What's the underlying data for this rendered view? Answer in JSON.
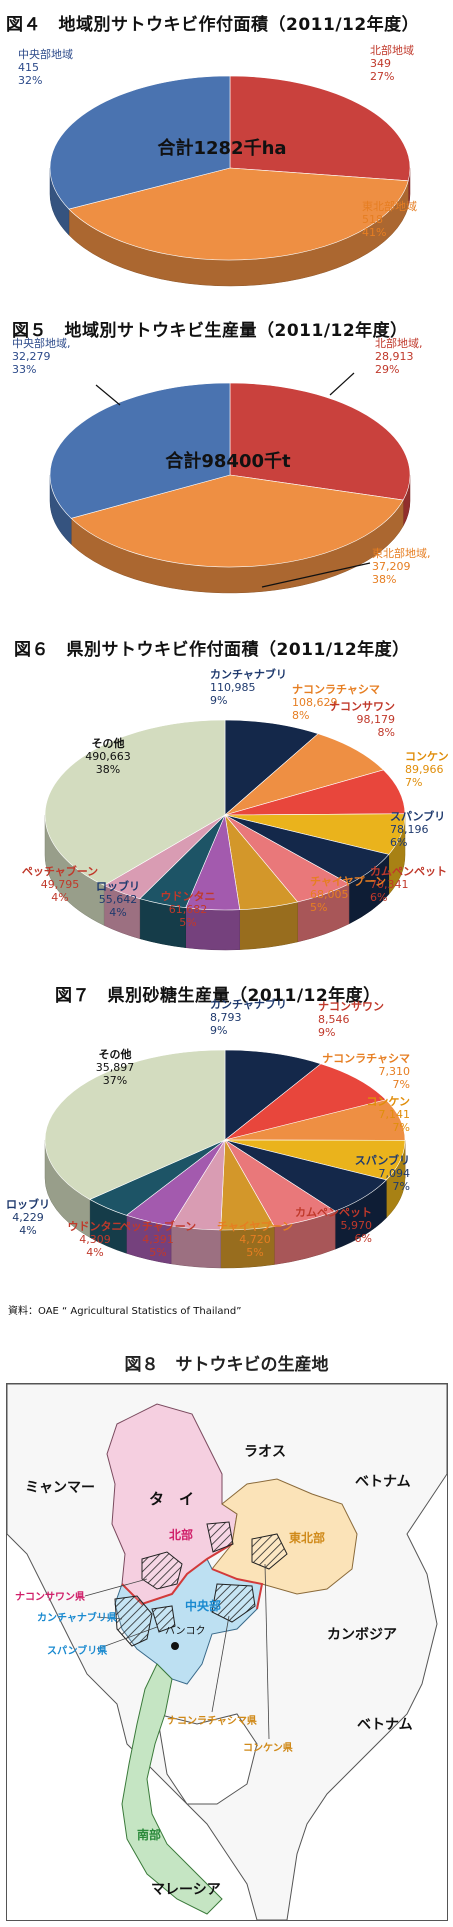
{
  "colors": {
    "red": "#c9413d",
    "orange": "#ee8f43",
    "blue": "#4a73b0",
    "navy": "#14284a",
    "gold": "#eab31c",
    "salmon": "#e9787a",
    "teal": "#1d5466",
    "violet": "#a35aae",
    "pink": "#d99cb3",
    "beige": "#d3dcbf",
    "ocher": "#d3972a"
  },
  "chart_data": [
    {
      "type": "pie",
      "title": "図４　地域別サトウキビ作付面積（2011/12年度）",
      "center_label": "合計1282千ha",
      "slices": [
        {
          "name": "北部地域",
          "value": 349,
          "percent": "27%",
          "value_text": "349",
          "color": "#c9413d",
          "label_color": "#c0392b"
        },
        {
          "name": "東北部地域",
          "value": 518,
          "percent": "41%",
          "value_text": "518",
          "color": "#ee8f43",
          "label_color": "#e67e22"
        },
        {
          "name": "中央部地域",
          "value": 415,
          "percent": "32%",
          "value_text": "415",
          "color": "#4a73b0",
          "label_color": "#2c4a8a"
        }
      ]
    },
    {
      "type": "pie",
      "title": "図５　地域別サトウキビ生産量（2011/12年度）",
      "center_label": "合計98400千t",
      "slices": [
        {
          "name": "北部地域,",
          "value": 28913,
          "percent": "29%",
          "value_text": "28,913",
          "color": "#c9413d",
          "label_color": "#c0392b"
        },
        {
          "name": "東北部地域,",
          "value": 37209,
          "percent": "38%",
          "value_text": "37,209",
          "color": "#ee8f43",
          "label_color": "#e67e22"
        },
        {
          "name": "中央部地域,",
          "value": 32279,
          "percent": "33%",
          "value_text": "32,279",
          "color": "#4a73b0",
          "label_color": "#2c4a8a"
        }
      ]
    },
    {
      "type": "pie",
      "title": "図６　県別サトウキビ作付面積（2011/12年度）",
      "slices": [
        {
          "name": "カンチャナブリ",
          "value": 110985,
          "value_text": "110,985",
          "percent": "9%",
          "color": "#14284a",
          "label_color": "#1f3a6e"
        },
        {
          "name": "ナコンラチャシマ",
          "value": 108629,
          "value_text": "108,629",
          "percent": "8%",
          "color": "#ee8f43",
          "label_color": "#e67e22"
        },
        {
          "name": "ナコンサワン",
          "value": 98179,
          "value_text": "98,179",
          "percent": "8%",
          "color": "#e8463c",
          "label_color": "#c0392b"
        },
        {
          "name": "コンケン",
          "value": 89966,
          "value_text": "89,966",
          "percent": "7%",
          "color": "#eab31c",
          "label_color": "#e08e0b"
        },
        {
          "name": "スパンブリ",
          "value": 78196,
          "value_text": "78,196",
          "percent": "6%",
          "color": "#14284a",
          "label_color": "#1f3a6e"
        },
        {
          "name": "カムペンペット",
          "value": 70341,
          "value_text": "70,341",
          "percent": "6%",
          "color": "#e9787a",
          "label_color": "#c0392b"
        },
        {
          "name": "チャイヤプーン",
          "value": 68005,
          "value_text": "68,005",
          "percent": "5%",
          "color": "#d3972a",
          "label_color": "#e67e22"
        },
        {
          "name": "ウドンタニ",
          "value": 61682,
          "value_text": "61,682",
          "percent": "5%",
          "color": "#a35aae",
          "label_color": "#c0392b"
        },
        {
          "name": "ロッブリ",
          "value": 55642,
          "value_text": "55,642",
          "percent": "4%",
          "color": "#1d5466",
          "label_color": "#1f3a6e"
        },
        {
          "name": "ペッチャブーン",
          "value": 49795,
          "value_text": "49,795",
          "percent": "4%",
          "color": "#d99cb3",
          "label_color": "#c0392b"
        },
        {
          "name": "その他",
          "value": 490663,
          "value_text": "490,663",
          "percent": "38%",
          "color": "#d3dcbf",
          "label_color": "#111111"
        }
      ]
    },
    {
      "type": "pie",
      "title": "図７　県別砂糖生産量（2011/12年度）",
      "slices": [
        {
          "name": "カンチャナブリ",
          "value": 8793,
          "value_text": "8,793",
          "percent": "9%",
          "color": "#14284a",
          "label_color": "#1f3a6e"
        },
        {
          "name": "ナコンサワン",
          "value": 8546,
          "value_text": "8,546",
          "percent": "9%",
          "color": "#e8463c",
          "label_color": "#c0392b"
        },
        {
          "name": "ナコンラチャシマ",
          "value": 7310,
          "value_text": "7,310",
          "percent": "7%",
          "color": "#ee8f43",
          "label_color": "#e67e22"
        },
        {
          "name": "コンケン",
          "value": 7141,
          "value_text": "7,141",
          "percent": "7%",
          "color": "#eab31c",
          "label_color": "#e08e0b"
        },
        {
          "name": "スパンブリ",
          "value": 7094,
          "value_text": "7,094",
          "percent": "7%",
          "color": "#14284a",
          "label_color": "#1f3a6e"
        },
        {
          "name": "カムペンペット",
          "value": 5970,
          "value_text": "5,970",
          "percent": "6%",
          "color": "#e9787a",
          "label_color": "#c0392b"
        },
        {
          "name": "チャイヤプーン",
          "value": 4720,
          "value_text": "4,720",
          "percent": "5%",
          "color": "#d3972a",
          "label_color": "#e67e22"
        },
        {
          "name": "ペッチャブーン",
          "value": 4391,
          "value_text": "4,391",
          "percent": "5%",
          "color": "#d99cb3",
          "label_color": "#c0392b"
        },
        {
          "name": "ウドンタニ",
          "value": 4309,
          "value_text": "4,309",
          "percent": "4%",
          "color": "#a35aae",
          "label_color": "#c0392b"
        },
        {
          "name": "ロッブリ",
          "value": 4229,
          "value_text": "4,229",
          "percent": "4%",
          "color": "#1d5466",
          "label_color": "#1f3a6e"
        },
        {
          "name": "その他",
          "value": 35897,
          "value_text": "35,897",
          "percent": "37%",
          "color": "#d3dcbf",
          "label_color": "#111111"
        }
      ]
    }
  ],
  "source": "資料：OAE “ Agricultural Statistics of Thailand”",
  "map": {
    "title": "図８　サトウキビの生産地",
    "labels": {
      "myanmar": "ミャンマー",
      "laos": "ラオス",
      "vietnam_n": "ベトナム",
      "thai": "タ　イ",
      "north": "北部",
      "northeast": "東北部",
      "nakhon_sawan": "ナコンサワン県",
      "kanchanaburi": "カンチャナブリ県",
      "central": "中央部",
      "bangkok": "バンコク",
      "suphanburi": "スパンブリ県",
      "cambodia": "カンボジア",
      "nakhon_ratchasima": "ナコンラチャシマ県",
      "khon_kaen": "コンケン県",
      "vietnam_s": "ベトナム",
      "south": "南部",
      "malaysia": "マレーシア"
    }
  }
}
